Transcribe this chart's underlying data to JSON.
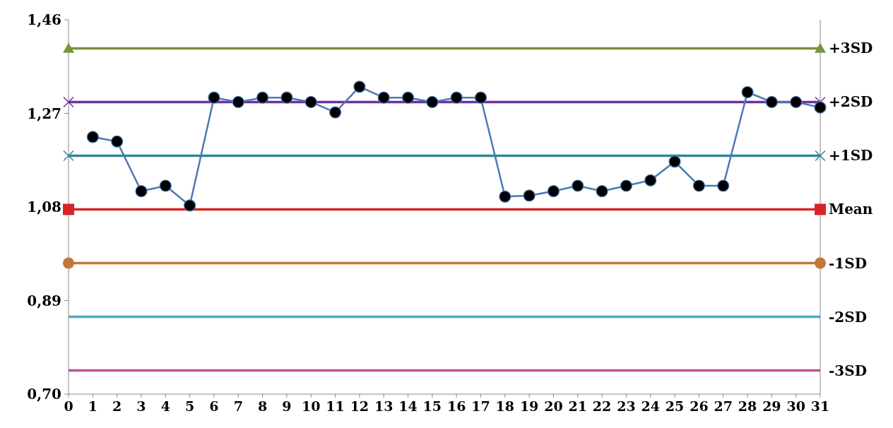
{
  "chart_data": {
    "type": "line",
    "xlim": [
      0,
      31
    ],
    "xticks": [
      0,
      1,
      2,
      3,
      4,
      5,
      6,
      7,
      8,
      9,
      10,
      11,
      12,
      13,
      14,
      15,
      16,
      17,
      18,
      19,
      20,
      21,
      22,
      23,
      24,
      25,
      26,
      27,
      28,
      29,
      30,
      31
    ],
    "ylim": [
      0.7,
      1.46
    ],
    "yticks": [
      {
        "value": 0.7,
        "label": "0,70"
      },
      {
        "value": 0.89,
        "label": "0,89"
      },
      {
        "value": 1.08,
        "label": "1,08"
      },
      {
        "value": 1.27,
        "label": "1,27"
      },
      {
        "value": 1.46,
        "label": "1,46"
      }
    ],
    "grid": false,
    "series": [
      {
        "name": "+3SD",
        "color": "#77933c",
        "x": [
          0,
          31
        ],
        "values": [
          1.402,
          1.402
        ],
        "marker": "triangle"
      },
      {
        "name": "+2SD",
        "color": "#7030a0",
        "x": [
          0,
          31
        ],
        "values": [
          1.293,
          1.293
        ],
        "marker": "cross"
      },
      {
        "name": "+1SD",
        "color": "#31859c",
        "x": [
          0,
          31
        ],
        "values": [
          1.184,
          1.184
        ],
        "marker": "cross"
      },
      {
        "name": "Mean",
        "color": "#d92525",
        "x": [
          0,
          31
        ],
        "values": [
          1.075,
          1.075
        ],
        "marker": "square"
      },
      {
        "name": "-1SD",
        "color": "#c0783c",
        "x": [
          0,
          31
        ],
        "values": [
          0.966,
          0.966
        ],
        "marker": "circle"
      },
      {
        "name": "-2SD",
        "color": "#4bacc6",
        "x": [
          0,
          31
        ],
        "values": [
          0.857,
          0.857
        ],
        "marker": "none"
      },
      {
        "name": "-3SD",
        "color": "#c0509a",
        "x": [
          0,
          31
        ],
        "values": [
          0.748,
          0.748
        ],
        "marker": "none"
      },
      {
        "color": "#4a7ab5",
        "marker": "circle",
        "x": [
          1,
          2,
          3,
          4,
          5,
          6,
          7,
          8,
          9,
          10,
          11,
          12,
          13,
          14,
          15,
          16,
          17,
          18,
          19,
          20,
          21,
          22,
          23,
          24,
          25,
          26,
          27,
          28,
          29,
          30,
          31
        ],
        "values": [
          1.222,
          1.213,
          1.112,
          1.123,
          1.083,
          1.302,
          1.293,
          1.302,
          1.302,
          1.293,
          1.272,
          1.324,
          1.302,
          1.302,
          1.293,
          1.302,
          1.302,
          1.101,
          1.103,
          1.112,
          1.123,
          1.112,
          1.123,
          1.134,
          1.172,
          1.123,
          1.123,
          1.313,
          1.293,
          1.293,
          1.282
        ]
      }
    ]
  }
}
